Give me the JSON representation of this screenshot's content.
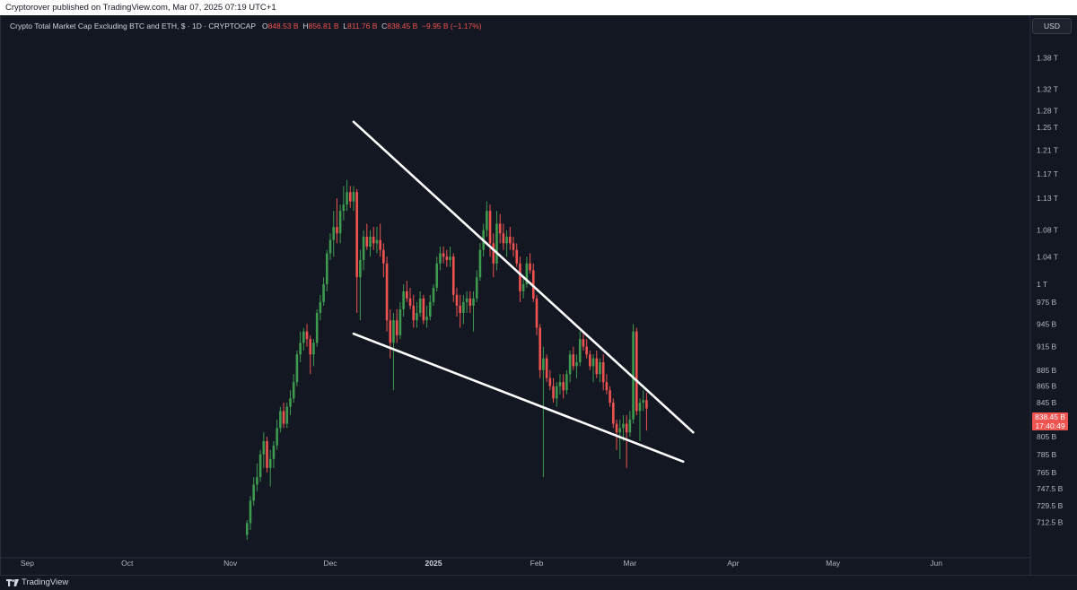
{
  "header": {
    "published": "Cryptorover published on TradingView.com, Mar 07, 2025 07:19 UTC+1"
  },
  "symbol": {
    "title": "Crypto Total Market Cap Excluding BTC and ETH, $ · 1D · CRYPTOCAP",
    "open_label": "O",
    "open": "848.53 B",
    "high_label": "H",
    "high": "856.81 B",
    "low_label": "L",
    "low": "811.76 B",
    "close_label": "C",
    "close": "838.45 B",
    "change": "−9.95 B (−1.17%)"
  },
  "currency": "USD",
  "last_price": {
    "value": "838.45 B",
    "countdown": "17:40:49"
  },
  "footer": {
    "brand": "TradingView"
  },
  "colors": {
    "background": "#131722",
    "up": "#26a69a",
    "up_candle": "#3d9a4f",
    "down": "#ef5350",
    "trendline": "#ffffff"
  },
  "chart_data": {
    "type": "candlestick",
    "x_axis": {
      "ticks": [
        "Sep",
        "Oct",
        "Nov",
        "Dec",
        "2025",
        "Feb",
        "Mar",
        "Apr",
        "May",
        "Jun"
      ],
      "bold_ticks": [
        "2025"
      ]
    },
    "y_axis": {
      "scale": "log",
      "ticks": [
        "1.38 T",
        "1.32 T",
        "1.28 T",
        "1.25 T",
        "1.21 T",
        "1.17 T",
        "1.13 T",
        "1.08 T",
        "1.04 T",
        "1 T",
        "975 B",
        "945 B",
        "915 B",
        "885 B",
        "865 B",
        "845 B",
        "825 B",
        "805 B",
        "785 B",
        "765 B",
        "747.5 B",
        "729.5 B",
        "712.5 B"
      ]
    },
    "trendlines": [
      {
        "name": "upper",
        "from": {
          "date": "2024-12-08",
          "value": 1260
        },
        "to": {
          "date": "2025-03-20",
          "value": 810
        }
      },
      {
        "name": "lower",
        "from": {
          "date": "2024-12-08",
          "value": 932
        },
        "to": {
          "date": "2025-03-17",
          "value": 777
        }
      }
    ],
    "candles": [
      [
        "2024-11-06",
        700,
        715,
        695,
        712
      ],
      [
        "2024-11-07",
        712,
        740,
        705,
        735
      ],
      [
        "2024-11-08",
        735,
        760,
        730,
        752
      ],
      [
        "2024-11-09",
        752,
        775,
        745,
        760
      ],
      [
        "2024-11-10",
        760,
        790,
        755,
        785
      ],
      [
        "2024-11-11",
        785,
        810,
        770,
        800
      ],
      [
        "2024-11-12",
        800,
        805,
        765,
        770
      ],
      [
        "2024-11-13",
        770,
        790,
        750,
        780
      ],
      [
        "2024-11-14",
        780,
        800,
        770,
        795
      ],
      [
        "2024-11-15",
        795,
        825,
        790,
        815
      ],
      [
        "2024-11-16",
        815,
        840,
        810,
        835
      ],
      [
        "2024-11-17",
        835,
        845,
        815,
        820
      ],
      [
        "2024-11-18",
        820,
        845,
        815,
        840
      ],
      [
        "2024-11-19",
        840,
        860,
        830,
        850
      ],
      [
        "2024-11-20",
        850,
        880,
        845,
        870
      ],
      [
        "2024-11-21",
        870,
        910,
        865,
        905
      ],
      [
        "2024-11-22",
        905,
        935,
        895,
        920
      ],
      [
        "2024-11-23",
        920,
        940,
        910,
        935
      ],
      [
        "2024-11-24",
        935,
        945,
        915,
        925
      ],
      [
        "2024-11-25",
        925,
        930,
        880,
        905
      ],
      [
        "2024-11-26",
        905,
        925,
        890,
        920
      ],
      [
        "2024-11-27",
        920,
        965,
        915,
        960
      ],
      [
        "2024-11-28",
        960,
        985,
        950,
        975
      ],
      [
        "2024-11-29",
        975,
        1010,
        970,
        1000
      ],
      [
        "2024-11-30",
        1000,
        1050,
        990,
        1045
      ],
      [
        "2024-12-01",
        1045,
        1075,
        1035,
        1065
      ],
      [
        "2024-12-02",
        1065,
        1110,
        1040,
        1085
      ],
      [
        "2024-12-03",
        1085,
        1130,
        1060,
        1075
      ],
      [
        "2024-12-04",
        1075,
        1120,
        1060,
        1110
      ],
      [
        "2024-12-05",
        1110,
        1150,
        1095,
        1120
      ],
      [
        "2024-12-06",
        1120,
        1160,
        1110,
        1140
      ],
      [
        "2024-12-07",
        1140,
        1150,
        1115,
        1125
      ],
      [
        "2024-12-08",
        1125,
        1150,
        1110,
        1140
      ],
      [
        "2024-12-09",
        1140,
        1145,
        960,
        1010
      ],
      [
        "2024-12-10",
        1010,
        1050,
        950,
        1035
      ],
      [
        "2024-12-11",
        1035,
        1080,
        1020,
        1070
      ],
      [
        "2024-12-12",
        1070,
        1090,
        1050,
        1055
      ],
      [
        "2024-12-13",
        1055,
        1080,
        1040,
        1070
      ],
      [
        "2024-12-14",
        1070,
        1085,
        1050,
        1060
      ],
      [
        "2024-12-15",
        1060,
        1085,
        1045,
        1065
      ],
      [
        "2024-12-16",
        1065,
        1090,
        1040,
        1050
      ],
      [
        "2024-12-17",
        1050,
        1060,
        1010,
        1030
      ],
      [
        "2024-12-18",
        1030,
        1040,
        935,
        950
      ],
      [
        "2024-12-19",
        950,
        965,
        900,
        920
      ],
      [
        "2024-12-20",
        920,
        960,
        860,
        950
      ],
      [
        "2024-12-21",
        950,
        965,
        920,
        930
      ],
      [
        "2024-12-22",
        930,
        975,
        925,
        965
      ],
      [
        "2024-12-23",
        965,
        1000,
        955,
        990
      ],
      [
        "2024-12-24",
        990,
        1005,
        975,
        980
      ],
      [
        "2024-12-25",
        980,
        995,
        965,
        970
      ],
      [
        "2024-12-26",
        970,
        985,
        940,
        950
      ],
      [
        "2024-12-27",
        950,
        975,
        940,
        960
      ],
      [
        "2024-12-28",
        960,
        990,
        955,
        980
      ],
      [
        "2024-12-29",
        980,
        985,
        945,
        950
      ],
      [
        "2024-12-30",
        950,
        970,
        940,
        955
      ],
      [
        "2024-12-31",
        955,
        985,
        950,
        975
      ],
      [
        "2025-01-01",
        975,
        1000,
        970,
        995
      ],
      [
        "2025-01-02",
        995,
        1040,
        990,
        1030
      ],
      [
        "2025-01-03",
        1030,
        1055,
        1020,
        1045
      ],
      [
        "2025-01-04",
        1045,
        1055,
        1030,
        1040
      ],
      [
        "2025-01-05",
        1040,
        1050,
        1025,
        1035
      ],
      [
        "2025-01-06",
        1035,
        1055,
        1025,
        1040
      ],
      [
        "2025-01-07",
        1040,
        1045,
        975,
        985
      ],
      [
        "2025-01-08",
        985,
        995,
        955,
        970
      ],
      [
        "2025-01-09",
        970,
        985,
        940,
        960
      ],
      [
        "2025-01-10",
        960,
        985,
        945,
        975
      ],
      [
        "2025-01-11",
        975,
        990,
        960,
        980
      ],
      [
        "2025-01-12",
        980,
        990,
        960,
        970
      ],
      [
        "2025-01-13",
        970,
        990,
        935,
        980
      ],
      [
        "2025-01-14",
        980,
        1020,
        975,
        1010
      ],
      [
        "2025-01-15",
        1010,
        1060,
        1005,
        1050
      ],
      [
        "2025-01-16",
        1050,
        1090,
        1040,
        1080
      ],
      [
        "2025-01-17",
        1080,
        1125,
        1070,
        1110
      ],
      [
        "2025-01-18",
        1110,
        1120,
        1040,
        1060
      ],
      [
        "2025-01-19",
        1060,
        1075,
        1010,
        1030
      ],
      [
        "2025-01-20",
        1030,
        1110,
        1020,
        1090
      ],
      [
        "2025-01-21",
        1090,
        1105,
        1060,
        1075
      ],
      [
        "2025-01-22",
        1075,
        1090,
        1050,
        1060
      ],
      [
        "2025-01-23",
        1060,
        1080,
        1040,
        1070
      ],
      [
        "2025-01-24",
        1070,
        1085,
        1050,
        1060
      ],
      [
        "2025-01-25",
        1060,
        1070,
        1040,
        1050
      ],
      [
        "2025-01-26",
        1050,
        1060,
        1025,
        1030
      ],
      [
        "2025-01-27",
        1030,
        1040,
        975,
        990
      ],
      [
        "2025-01-28",
        990,
        1010,
        980,
        1000
      ],
      [
        "2025-01-29",
        1000,
        1040,
        995,
        1030
      ],
      [
        "2025-01-30",
        1030,
        1045,
        1015,
        1020
      ],
      [
        "2025-01-31",
        1020,
        1030,
        975,
        980
      ],
      [
        "2025-02-01",
        980,
        985,
        930,
        940
      ],
      [
        "2025-02-02",
        940,
        945,
        875,
        885
      ],
      [
        "2025-02-03",
        885,
        915,
        760,
        900
      ],
      [
        "2025-02-04",
        900,
        905,
        870,
        875
      ],
      [
        "2025-02-05",
        875,
        885,
        860,
        865
      ],
      [
        "2025-02-06",
        865,
        875,
        845,
        850
      ],
      [
        "2025-02-07",
        850,
        870,
        840,
        865
      ],
      [
        "2025-02-08",
        865,
        880,
        855,
        870
      ],
      [
        "2025-02-09",
        870,
        880,
        850,
        860
      ],
      [
        "2025-02-10",
        860,
        885,
        855,
        880
      ],
      [
        "2025-02-11",
        880,
        910,
        870,
        905
      ],
      [
        "2025-02-12",
        905,
        915,
        885,
        890
      ],
      [
        "2025-02-13",
        890,
        905,
        875,
        895
      ],
      [
        "2025-02-14",
        895,
        935,
        890,
        925
      ],
      [
        "2025-02-15",
        925,
        935,
        910,
        915
      ],
      [
        "2025-02-16",
        915,
        925,
        900,
        905
      ],
      [
        "2025-02-17",
        905,
        910,
        885,
        890
      ],
      [
        "2025-02-18",
        890,
        905,
        870,
        900
      ],
      [
        "2025-02-19",
        900,
        910,
        875,
        880
      ],
      [
        "2025-02-20",
        880,
        900,
        870,
        895
      ],
      [
        "2025-02-21",
        895,
        905,
        860,
        870
      ],
      [
        "2025-02-22",
        870,
        880,
        855,
        860
      ],
      [
        "2025-02-23",
        860,
        865,
        840,
        845
      ],
      [
        "2025-02-24",
        845,
        850,
        815,
        820
      ],
      [
        "2025-02-25",
        820,
        825,
        790,
        810
      ],
      [
        "2025-02-26",
        810,
        825,
        780,
        815
      ],
      [
        "2025-02-27",
        815,
        830,
        800,
        820
      ],
      [
        "2025-02-28",
        820,
        830,
        770,
        810
      ],
      [
        "2025-03-01",
        810,
        835,
        805,
        825
      ],
      [
        "2025-03-02",
        825,
        945,
        820,
        935
      ],
      [
        "2025-03-03",
        935,
        940,
        830,
        835
      ],
      [
        "2025-03-04",
        835,
        850,
        800,
        845
      ],
      [
        "2025-03-05",
        845,
        860,
        835,
        848
      ],
      [
        "2025-03-06",
        848,
        857,
        812,
        838
      ]
    ]
  }
}
